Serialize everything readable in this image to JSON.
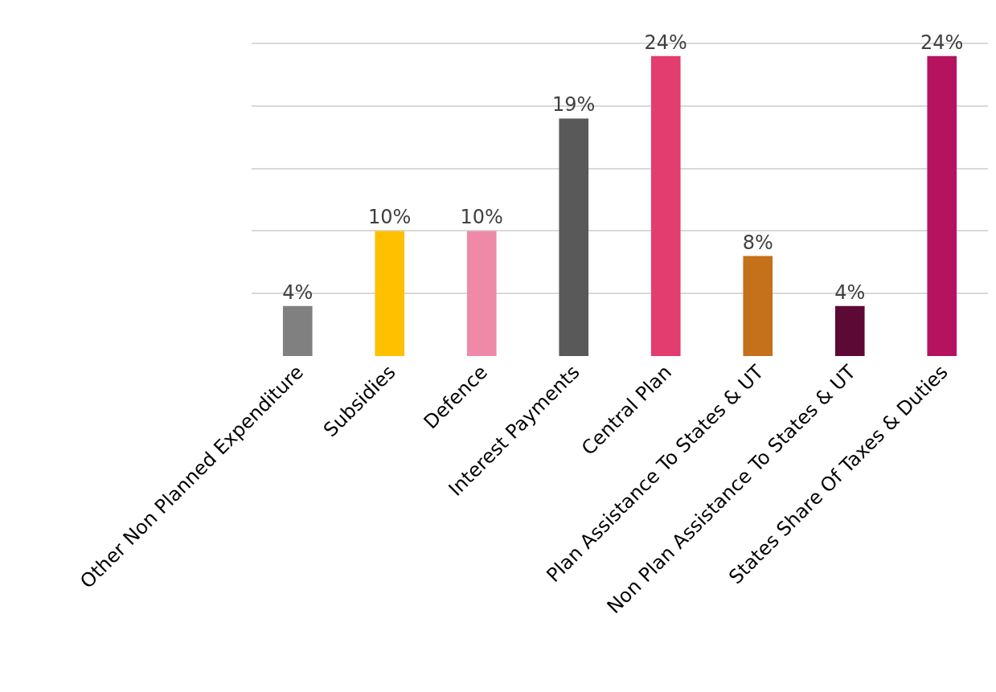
{
  "chart_data": {
    "type": "bar",
    "categories": [
      "Other Non Planned Expenditure",
      "Subsidies",
      "Defence",
      "Interest Payments",
      "Central Plan",
      "Plan Assistance To States & UT",
      "Non Plan Assistance To States & UT",
      "States Share Of Taxes & Duties"
    ],
    "values": [
      4,
      10,
      10,
      19,
      24,
      8,
      4,
      24
    ],
    "value_labels": [
      "4%",
      "10%",
      "10%",
      "19%",
      "24%",
      "8%",
      "4%",
      "24%"
    ],
    "colors": [
      "#808080",
      "#ffc000",
      "#ee8aa8",
      "#595959",
      "#e33c6e",
      "#c5701a",
      "#5c0a35",
      "#b5135f"
    ],
    "grid": "y",
    "tick_labels": "x"
  }
}
